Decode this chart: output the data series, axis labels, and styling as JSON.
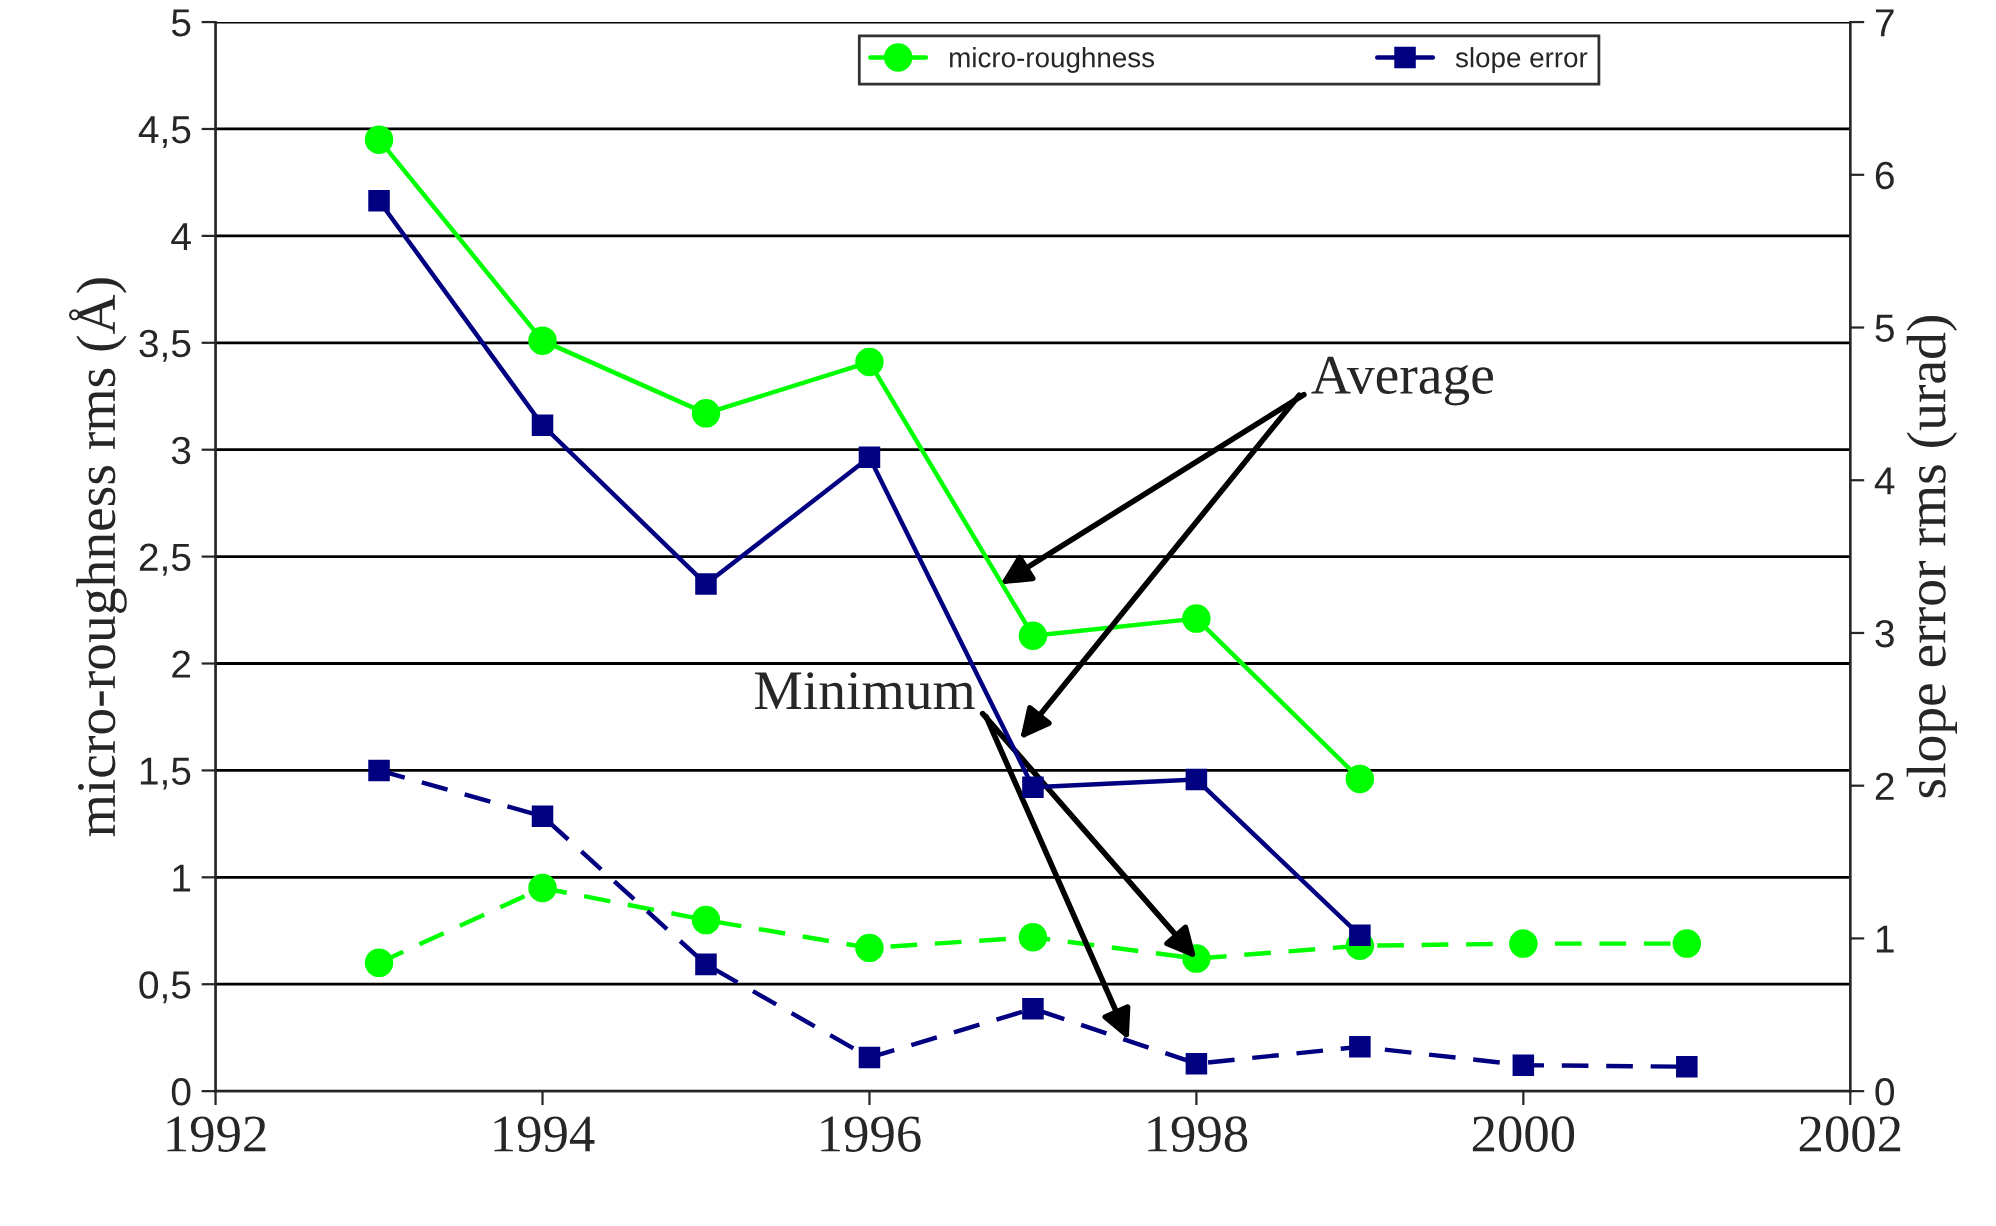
{
  "chart_data": {
    "type": "line",
    "ylabel": "micro-roughness rms (Å)",
    "y2label": "slope error rms (urad)",
    "xlim": [
      1992,
      2002
    ],
    "xticks": [
      1992,
      1994,
      1996,
      1998,
      2000,
      2002
    ],
    "ylim": [
      0,
      5
    ],
    "yticks": [
      0,
      {
        "value": 0.5,
        "label": "0,5"
      },
      1,
      {
        "value": 1.5,
        "label": "1,5"
      },
      2,
      {
        "value": 2.5,
        "label": "2,5"
      },
      3,
      {
        "value": 3.5,
        "label": "3,5"
      },
      4,
      {
        "value": 4.5,
        "label": "4,5"
      },
      5
    ],
    "y2lim": [
      0,
      7
    ],
    "y2ticks": [
      0,
      1,
      2,
      3,
      4,
      5,
      6,
      7
    ],
    "grid": "y",
    "legend": "top",
    "series": [
      {
        "name": "micro-roughness",
        "color": "#00ff00",
        "marker": "circle",
        "line_style": "solid",
        "x": [
          1993,
          1994,
          1995,
          1996,
          1997,
          1998,
          1999
        ],
        "values": [
          4.45,
          3.51,
          3.17,
          3.41,
          2.13,
          2.21,
          1.46
        ]
      },
      {
        "name": "slope error",
        "color": "#000080",
        "marker": "square",
        "line_style": "solid",
        "axis": "y2",
        "x": [
          1993,
          1994,
          1995,
          1996,
          1997,
          1998,
          1999
        ],
        "values": [
          5.83,
          4.36,
          3.32,
          4.15,
          1.99,
          2.04,
          1.02
        ]
      },
      {
        "color": "#00ff00",
        "marker": "circle",
        "line_style": "dashed",
        "x": [
          1993,
          1994,
          1995,
          1996,
          1997,
          1998,
          1999,
          2000,
          2001
        ],
        "values": [
          0.6,
          0.95,
          0.8,
          0.67,
          0.72,
          0.62,
          0.68,
          0.69,
          0.69
        ]
      },
      {
        "color": "#000080",
        "marker": "square",
        "line_style": "dashed",
        "axis": "y2",
        "x": [
          1993,
          1994,
          1995,
          1996,
          1997,
          1998,
          1999,
          2000,
          2001
        ],
        "values": [
          2.1,
          1.8,
          0.83,
          0.22,
          0.54,
          0.18,
          0.29,
          0.17,
          0.16
        ]
      }
    ],
    "annotations": [
      {
        "text": "Average",
        "x": 1996.8,
        "y": 2.37
      },
      {
        "text": "Minimum",
        "x": 1998,
        "y": 0.62
      }
    ]
  }
}
